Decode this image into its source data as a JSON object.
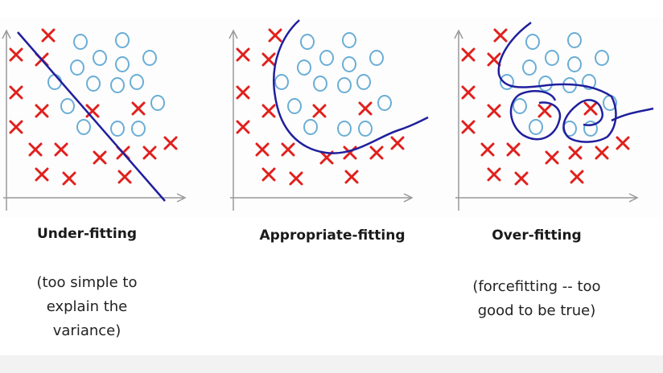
{
  "panels": [
    {
      "title": "Under-fitting",
      "caption": [
        "(too simple to",
        "explain the",
        "variance)"
      ]
    },
    {
      "title": "Appropriate-fitting",
      "caption": []
    },
    {
      "title": "Over-fitting",
      "caption": [
        "(forcefitting -- too",
        "good to be true)"
      ]
    }
  ]
}
